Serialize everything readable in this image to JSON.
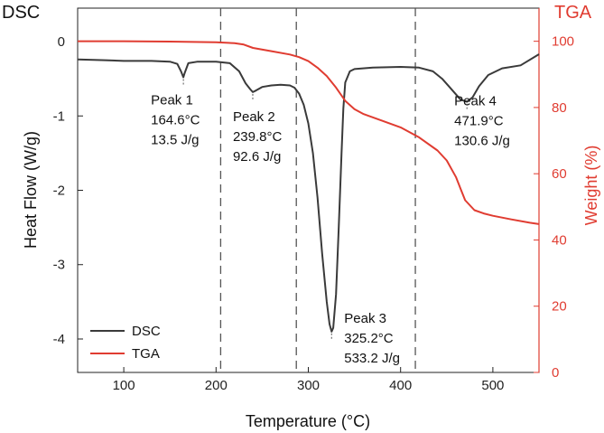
{
  "chart_data": {
    "type": "line",
    "corner_labels": {
      "left": "DSC",
      "right": "TGA"
    },
    "xlabel": "Temperature (°C)",
    "ylabel_left": "Heat Flow (W/g)",
    "ylabel_right": "Weight (%)",
    "xlim": [
      50,
      550
    ],
    "ylim_left": [
      -4.45,
      0.45
    ],
    "ylim_right": [
      0,
      110
    ],
    "x_ticks": [
      100,
      200,
      300,
      400,
      500
    ],
    "y_ticks_left": [
      0,
      -1,
      -2,
      -3,
      -4
    ],
    "y_ticks_right": [
      0,
      20,
      40,
      60,
      80,
      100
    ],
    "grid": false,
    "legend": {
      "position": "bottom-left",
      "entries": [
        "DSC",
        "TGA"
      ]
    },
    "colors": {
      "DSC": "#3a3a3a",
      "TGA": "#e03c31"
    },
    "vlines": [
      205,
      287,
      416
    ],
    "series": [
      {
        "name": "DSC",
        "axis": "left",
        "points": [
          [
            50,
            -0.24
          ],
          [
            80,
            -0.25
          ],
          [
            100,
            -0.26
          ],
          [
            130,
            -0.26
          ],
          [
            150,
            -0.27
          ],
          [
            158,
            -0.3
          ],
          [
            162,
            -0.4
          ],
          [
            164.6,
            -0.48
          ],
          [
            166,
            -0.42
          ],
          [
            170,
            -0.29
          ],
          [
            180,
            -0.27
          ],
          [
            200,
            -0.27
          ],
          [
            215,
            -0.29
          ],
          [
            225,
            -0.4
          ],
          [
            232,
            -0.56
          ],
          [
            237,
            -0.64
          ],
          [
            239.8,
            -0.68
          ],
          [
            243,
            -0.66
          ],
          [
            250,
            -0.61
          ],
          [
            260,
            -0.59
          ],
          [
            270,
            -0.58
          ],
          [
            280,
            -0.59
          ],
          [
            285,
            -0.62
          ],
          [
            290,
            -0.7
          ],
          [
            295,
            -0.85
          ],
          [
            300,
            -1.1
          ],
          [
            305,
            -1.5
          ],
          [
            310,
            -2.1
          ],
          [
            315,
            -2.85
          ],
          [
            320,
            -3.5
          ],
          [
            323,
            -3.8
          ],
          [
            325.2,
            -3.9
          ],
          [
            327,
            -3.85
          ],
          [
            330,
            -3.4
          ],
          [
            333,
            -2.5
          ],
          [
            336,
            -1.5
          ],
          [
            338,
            -0.9
          ],
          [
            340,
            -0.55
          ],
          [
            345,
            -0.4
          ],
          [
            350,
            -0.37
          ],
          [
            370,
            -0.35
          ],
          [
            400,
            -0.34
          ],
          [
            420,
            -0.35
          ],
          [
            435,
            -0.4
          ],
          [
            445,
            -0.5
          ],
          [
            455,
            -0.64
          ],
          [
            465,
            -0.78
          ],
          [
            471.9,
            -0.81
          ],
          [
            478,
            -0.75
          ],
          [
            485,
            -0.6
          ],
          [
            495,
            -0.45
          ],
          [
            510,
            -0.36
          ],
          [
            530,
            -0.32
          ],
          [
            550,
            -0.17
          ]
        ]
      },
      {
        "name": "TGA",
        "axis": "right",
        "points": [
          [
            50,
            100
          ],
          [
            100,
            100
          ],
          [
            150,
            99.9
          ],
          [
            200,
            99.7
          ],
          [
            220,
            99.4
          ],
          [
            230,
            99.0
          ],
          [
            240,
            98.0
          ],
          [
            260,
            97.0
          ],
          [
            280,
            96.0
          ],
          [
            290,
            95.2
          ],
          [
            300,
            94.0
          ],
          [
            310,
            92.0
          ],
          [
            320,
            89.5
          ],
          [
            330,
            86.0
          ],
          [
            340,
            82.0
          ],
          [
            350,
            79.5
          ],
          [
            360,
            78.0
          ],
          [
            380,
            76.0
          ],
          [
            400,
            74.0
          ],
          [
            420,
            71.0
          ],
          [
            440,
            67.0
          ],
          [
            450,
            64.0
          ],
          [
            460,
            59.0
          ],
          [
            465,
            55.5
          ],
          [
            470,
            52.0
          ],
          [
            480,
            49.0
          ],
          [
            490,
            48.0
          ],
          [
            500,
            47.3
          ],
          [
            520,
            46.2
          ],
          [
            540,
            45.2
          ],
          [
            550,
            44.8
          ]
        ]
      }
    ],
    "peaks": [
      {
        "label": "Peak 1",
        "temp": "164.6°C",
        "enthalpy": "13.5 J/g",
        "x": 164.6,
        "y": -0.48
      },
      {
        "label": "Peak 2",
        "temp": "239.8°C",
        "enthalpy": "92.6 J/g",
        "x": 239.8,
        "y": -0.68
      },
      {
        "label": "Peak 3",
        "temp": "325.2°C",
        "enthalpy": "533.2 J/g",
        "x": 325.2,
        "y": -3.9
      },
      {
        "label": "Peak 4",
        "temp": "471.9°C",
        "enthalpy": "130.6 J/g",
        "x": 471.9,
        "y": -0.81
      }
    ]
  }
}
